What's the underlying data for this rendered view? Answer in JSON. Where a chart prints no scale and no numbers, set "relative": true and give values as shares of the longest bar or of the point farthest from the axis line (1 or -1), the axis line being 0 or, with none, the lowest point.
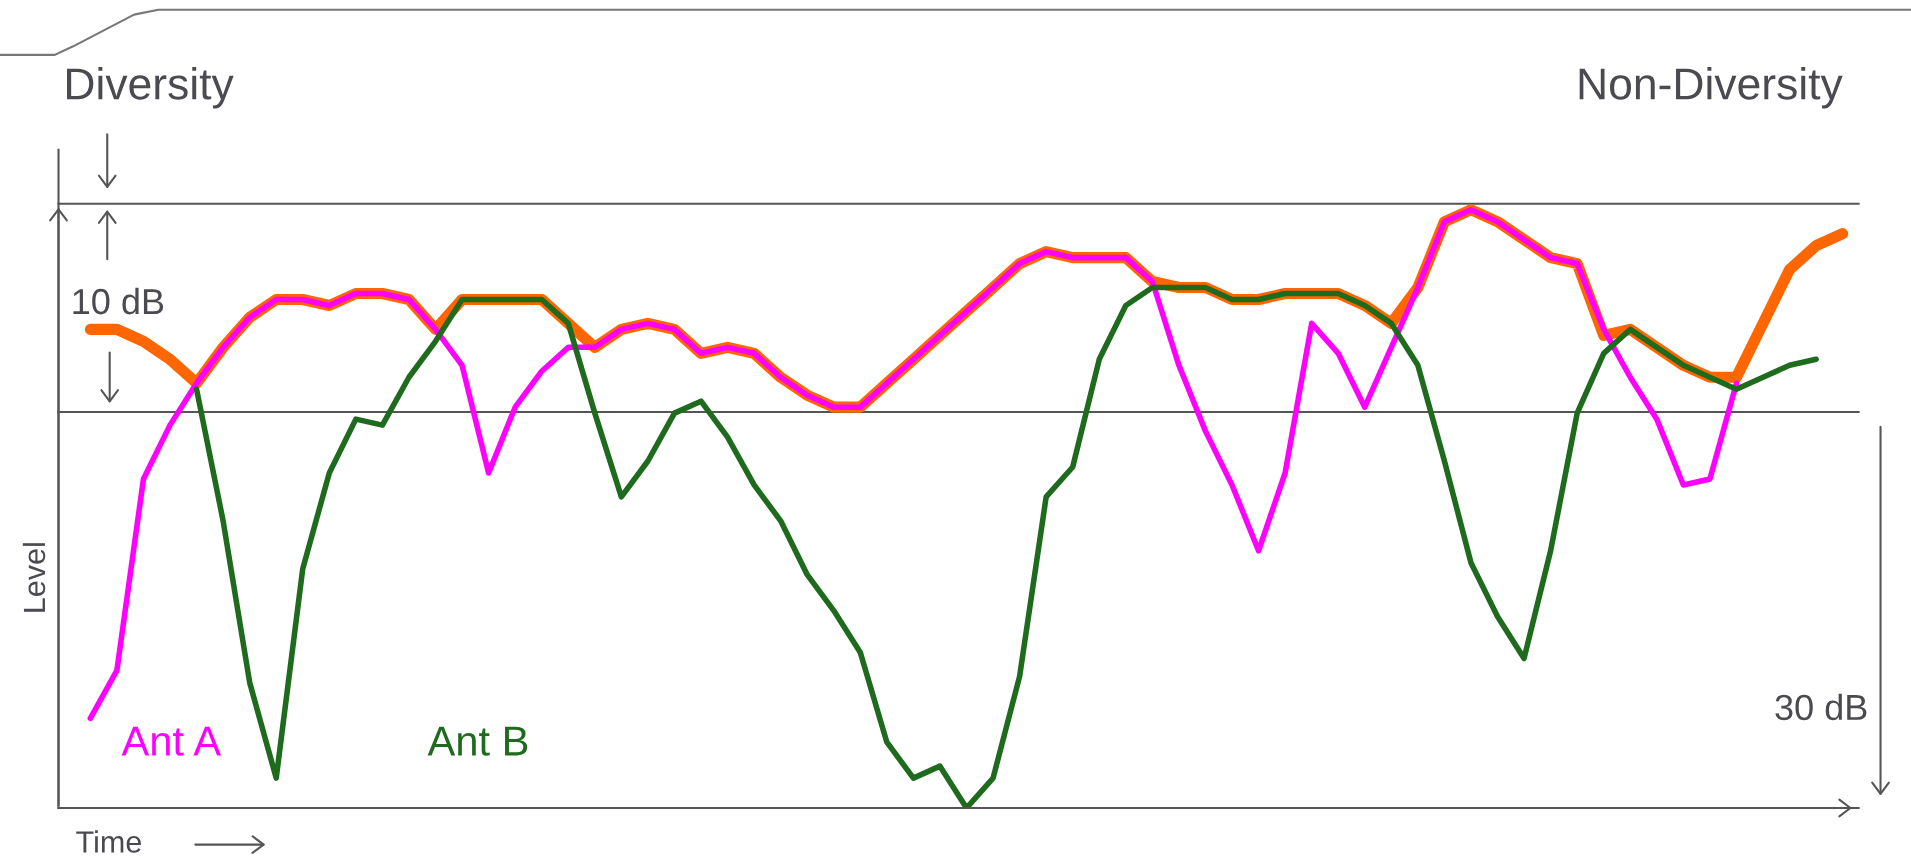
{
  "chart_data": {
    "type": "line",
    "relative": true,
    "xlabel": "Time",
    "ylabel": "Level",
    "annotations": [
      "Diversity",
      "Non-Diversity",
      "10 dB",
      "30 dB"
    ],
    "categories": [
      null,
      null,
      null,
      null,
      null,
      null,
      null,
      null,
      null,
      null,
      null,
      null,
      null,
      null,
      null,
      null,
      null,
      null,
      null,
      null,
      null,
      null,
      null,
      null,
      null,
      null,
      null,
      null,
      null,
      null,
      null,
      null,
      null,
      null,
      null,
      null,
      null,
      null,
      null,
      null,
      null,
      null,
      null,
      null,
      null,
      null,
      null,
      null,
      null,
      null,
      null,
      null,
      null,
      null,
      null,
      null,
      null,
      null,
      null,
      null,
      null,
      null,
      null,
      null,
      null,
      null,
      null
    ],
    "ref_lines": [
      {
        "axis": "y",
        "value": 1.01,
        "color": "#555555"
      },
      {
        "axis": "y",
        "value": 0.662,
        "color": "#555555"
      }
    ],
    "legend": false,
    "grid": false,
    "marker": "none",
    "line_style": "solid",
    "series": [
      {
        "name": "Ant A",
        "color": "#ff00ff",
        "values": [
          0.15,
          0.23,
          0.55,
          0.64,
          0.71,
          0.77,
          0.82,
          0.85,
          0.85,
          0.84,
          0.86,
          0.86,
          0.85,
          0.8,
          0.74,
          0.56,
          0.67,
          0.73,
          0.77,
          0.77,
          0.8,
          0.81,
          0.8,
          0.76,
          0.77,
          0.76,
          0.72,
          0.69,
          0.67,
          0.67,
          0.71,
          0.75,
          0.79,
          0.83,
          0.87,
          0.91,
          0.93,
          0.92,
          0.92,
          0.92,
          0.88,
          0.74,
          0.63,
          0.54,
          0.43,
          0.56,
          0.81,
          0.76,
          0.67,
          0.77,
          0.87,
          0.98,
          1.0,
          0.98,
          0.95,
          0.92,
          0.91,
          0.8,
          0.72,
          0.65,
          0.54,
          0.55,
          0.71,
          null,
          null,
          null,
          null
        ]
      },
      {
        "name": "Ant B",
        "color": "#1e6b1e",
        "values": [
          null,
          null,
          null,
          null,
          0.7,
          0.48,
          0.21,
          0.05,
          0.4,
          0.56,
          0.65,
          0.64,
          0.72,
          0.78,
          0.85,
          0.85,
          0.85,
          0.85,
          0.81,
          0.66,
          0.52,
          0.58,
          0.66,
          0.68,
          0.62,
          0.54,
          0.48,
          0.39,
          0.33,
          0.26,
          0.11,
          0.05,
          0.07,
          0.0,
          0.05,
          0.22,
          0.52,
          0.57,
          0.75,
          0.84,
          0.87,
          0.87,
          0.87,
          0.85,
          0.85,
          0.86,
          0.86,
          0.86,
          0.84,
          0.81,
          0.74,
          0.58,
          0.41,
          0.32,
          0.25,
          0.43,
          0.66,
          0.76,
          0.8,
          0.77,
          0.74,
          0.72,
          0.7,
          0.72,
          0.74,
          0.75,
          null
        ]
      },
      {
        "color": "#ff6600",
        "values": [
          0.8,
          0.8,
          0.78,
          0.75,
          0.71,
          0.77,
          0.82,
          0.85,
          0.85,
          0.84,
          0.86,
          0.86,
          0.85,
          0.8,
          0.85,
          0.85,
          0.85,
          0.85,
          0.81,
          0.77,
          0.8,
          0.81,
          0.8,
          0.76,
          0.77,
          0.76,
          0.72,
          0.69,
          0.67,
          0.67,
          0.71,
          0.75,
          0.79,
          0.83,
          0.87,
          0.91,
          0.93,
          0.92,
          0.92,
          0.92,
          0.88,
          0.87,
          0.87,
          0.85,
          0.85,
          0.86,
          0.86,
          0.86,
          0.84,
          0.81,
          0.87,
          0.98,
          1.0,
          0.98,
          0.95,
          0.92,
          0.91,
          0.79,
          0.8,
          0.77,
          0.74,
          0.72,
          0.72,
          0.81,
          0.9,
          0.94,
          0.96
        ]
      }
    ]
  }
}
